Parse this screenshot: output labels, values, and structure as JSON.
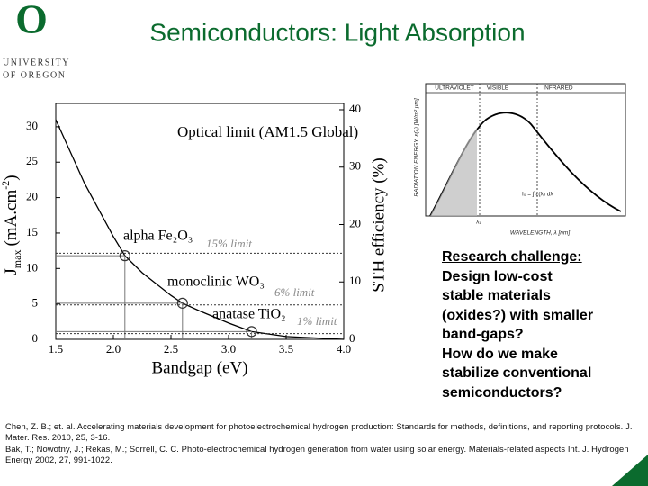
{
  "header": {
    "logo_letter": "O",
    "logo_line1": "UNIVERSITY",
    "logo_line2": "OF OREGON",
    "title": "Semiconductors: Light Absorption"
  },
  "chart_data": {
    "type": "line",
    "x_label": "Bandgap (eV)",
    "y2_label": "STH efficiency (%)",
    "y_label": {
      "main": "J",
      "sub": "max",
      "unit": "(mA.cm",
      "sup": "-2",
      "close": ")"
    },
    "x": [
      1.5,
      1.75,
      2.0,
      2.1,
      2.25,
      2.5,
      2.6,
      2.75,
      3.0,
      3.2,
      3.5,
      4.0
    ],
    "values": [
      31,
      22,
      14.5,
      11.8,
      9.4,
      6.2,
      5.1,
      4,
      2.3,
      1.1,
      0.4,
      0
    ],
    "color": "#000000",
    "xlim": [
      1.5,
      4.0
    ],
    "xticks": [
      1.5,
      {
        "value": 2,
        "label": "2.0"
      },
      2.5,
      {
        "value": 3,
        "label": "3.0"
      },
      3.5,
      {
        "value": 4,
        "label": "4.0"
      }
    ],
    "ylim": [
      0,
      32.4
    ],
    "yticks": [
      0,
      5,
      10,
      15,
      20,
      25,
      30
    ],
    "y2lim": [
      0,
      40
    ],
    "y2ticks": [
      0,
      10,
      20,
      30,
      40
    ],
    "curve_label": "Optical limit (AM1.5 Global)",
    "points": [
      {
        "label": "alpha Fe₂O₃",
        "x": 2.1,
        "y": 11.8,
        "limit": 15,
        "limit_label": "15% limit"
      },
      {
        "label": "monoclinic WO₃",
        "x": 2.6,
        "y": 5.1,
        "limit": 6,
        "limit_label": "6% limit"
      },
      {
        "label": "anatase TiO₂",
        "x": 3.2,
        "y": 1.1,
        "limit": 1,
        "limit_label": "1% limit"
      }
    ]
  },
  "inset": {
    "uv": "ULTRAVIOLET",
    "visible": "VISIBLE",
    "infrared": "INFRARED",
    "formula": "I₀ = ∫ ε(λ) dλ",
    "lambda1": "λ₁",
    "x_label": "WAVELENGTH, λ [nm]",
    "y_label": "RADIATION ENERGY, ε(λ) [W/m² μm]"
  },
  "callout": {
    "heading": "Research challenge:",
    "lines": [
      "Design low-cost",
      "stable materials",
      "(oxides?) with smaller",
      "band-gaps?",
      "How do we make",
      "stabilize conventional",
      "semiconductors?"
    ]
  },
  "references": [
    "Chen, Z. B.; et. al. Accelerating materials development for photoelectrochemical hydrogen production: Standards for methods, definitions, and reporting protocols. J. Mater. Res. 2010, 25, 3-16.",
    "Bak, T.; Nowotny, J.; Rekas, M.; Sorrell, C. C. Photo-electrochemical hydrogen generation from water using solar energy. Materials-related aspects Int. J. Hydrogen Energy 2002, 27, 991-1022."
  ]
}
